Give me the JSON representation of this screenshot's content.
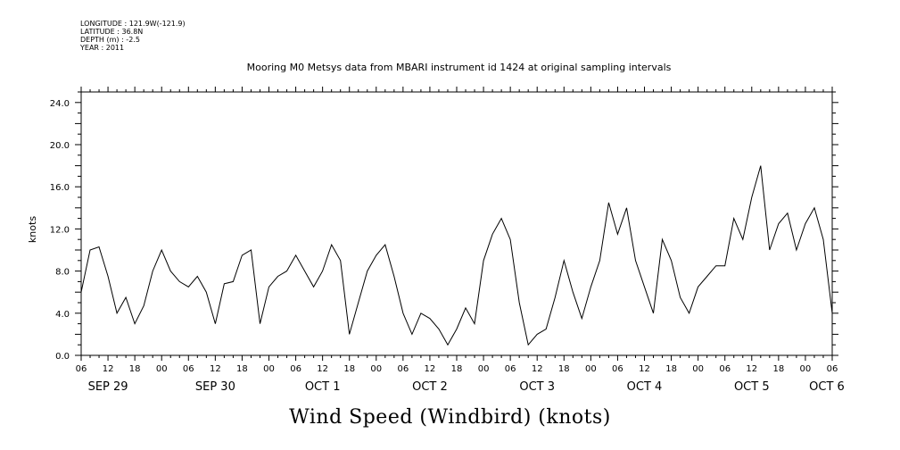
{
  "meta": {
    "longitude": "LONGITUDE : 121.9W(-121.9)",
    "latitude": "LATITUDE : 36.8N",
    "depth": "DEPTH (m) : -2.5",
    "year": "YEAR : 2011"
  },
  "title": "Mooring M0 Metsys data from MBARI instrument id 1424 at original sampling intervals",
  "bottom_title": "Wind Speed (Windbird) (knots)",
  "chart_data": {
    "type": "line",
    "ylabel": "knots",
    "ylim": [
      0,
      25
    ],
    "yticks": [
      "0.0",
      "4.0",
      "8.0",
      "12.0",
      "16.0",
      "20.0",
      "24.0"
    ],
    "x_start": "SEP 29 06:00",
    "x_end": "OCT 6 06:00",
    "hour_tick_labels": [
      "06",
      "12",
      "18",
      "00",
      "06",
      "12",
      "18",
      "00",
      "06",
      "12",
      "18",
      "00",
      "06",
      "12",
      "18",
      "00",
      "06",
      "12",
      "18",
      "00",
      "06",
      "12",
      "18",
      "00",
      "06",
      "12",
      "18",
      "00",
      "06"
    ],
    "day_labels": [
      "SEP 29",
      "SEP 30",
      "OCT  1",
      "OCT  2",
      "OCT  3",
      "OCT  4",
      "OCT  5",
      "OCT  6"
    ],
    "series": [
      {
        "hours_from_sep29_06": [
          0,
          2,
          4,
          6,
          8,
          10,
          12,
          14,
          16,
          18,
          20,
          22,
          24,
          26,
          28,
          30,
          32,
          34,
          36,
          38,
          40,
          42,
          44,
          46,
          48,
          50,
          52,
          54,
          56,
          58,
          60,
          62,
          64,
          66,
          68,
          70,
          72,
          74,
          76,
          78,
          80,
          82,
          84,
          86,
          88,
          90,
          92,
          94,
          96,
          98,
          100,
          102,
          104,
          106,
          108,
          110,
          112,
          114,
          116,
          118,
          120,
          122,
          124,
          126,
          128,
          130,
          132,
          134,
          136,
          138,
          140,
          142,
          144,
          146,
          148,
          150,
          152,
          154,
          156,
          158,
          160,
          162,
          164,
          166,
          168
        ],
        "values": [
          6.0,
          10.0,
          10.3,
          7.5,
          4.0,
          5.5,
          3.0,
          4.7,
          8.0,
          10.0,
          8.0,
          7.0,
          6.5,
          7.5,
          6.0,
          3.0,
          6.8,
          7.0,
          9.5,
          10.0,
          3.0,
          6.5,
          7.5,
          8.0,
          9.5,
          8.0,
          6.5,
          8.0,
          10.5,
          9.0,
          2.0,
          5.0,
          8.0,
          9.5,
          10.5,
          7.5,
          4.0,
          2.0,
          4.0,
          3.5,
          2.5,
          1.0,
          2.5,
          4.5,
          3.0,
          9.0,
          11.5,
          13.0,
          11.0,
          5.0,
          1.0,
          2.0,
          2.5,
          5.5,
          9.0,
          6.0,
          3.5,
          6.5,
          9.0,
          14.5,
          11.5,
          14.0,
          9.0,
          6.5,
          4.0,
          11.0,
          9.0,
          5.5,
          4.0,
          6.5,
          7.5,
          8.5,
          8.5,
          13.0,
          11.0,
          15.0,
          18.0,
          10.0,
          12.5,
          13.5,
          10.0,
          12.5,
          14.0,
          11.0,
          4.0
        ]
      }
    ]
  }
}
